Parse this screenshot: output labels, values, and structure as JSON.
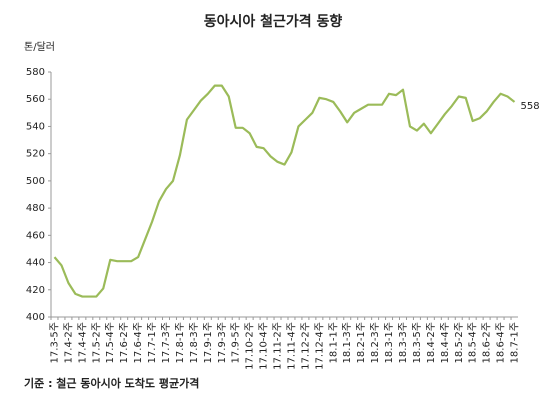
{
  "chart_data": {
    "type": "line",
    "title": "동아시아 철근가격 동향",
    "y_label": "톤/달러",
    "footnote": "기준 : 철근 동아시아 도착도 평균가격",
    "categories": [
      "17.3-5주",
      null,
      "17.4-2주",
      null,
      "17.4-4주",
      null,
      "17.5-2주",
      null,
      "17.5-4주",
      null,
      "17.6-2주",
      null,
      "17.6-4주",
      null,
      "17.7-1주",
      null,
      "17.7-3주",
      null,
      "17.8-1주",
      null,
      "17.8-3주",
      null,
      "17.9-1주",
      null,
      "17.9-3주",
      null,
      "17.9-5주",
      null,
      "17.10-2주",
      null,
      "17.10-4주",
      null,
      "17.11-2주",
      null,
      "17.11-4주",
      null,
      "17.12-2주",
      null,
      "17.12-4주",
      null,
      "18.1-1주",
      null,
      "18.1-3주",
      null,
      "18.2-1주",
      null,
      "18.2-3주",
      null,
      "18.3-1주",
      null,
      "18.3-3주",
      null,
      "18.3-5주",
      null,
      "18.4-2주",
      null,
      "18.4-4주",
      null,
      "18.5-2주",
      null,
      "18.5-4주",
      null,
      "18.6-2주",
      null,
      "18.6-4주",
      null,
      "18.7-1주"
    ],
    "values": [
      444,
      438,
      425,
      417,
      415,
      415,
      415,
      421,
      442,
      441,
      441,
      441,
      444,
      457,
      470,
      485,
      494,
      500,
      519,
      545,
      552,
      559,
      564,
      570,
      570,
      562,
      539,
      539,
      535,
      525,
      524,
      518,
      514,
      512,
      521,
      540,
      545,
      550,
      561,
      560,
      558,
      551,
      543,
      550,
      553,
      556,
      556,
      556,
      564,
      563,
      567,
      540,
      537,
      542,
      535,
      542,
      549,
      555,
      562,
      561,
      544,
      546,
      551,
      558,
      564,
      562,
      558
    ],
    "color": "#9bbb59",
    "ylim": [
      400,
      580
    ],
    "yticks": [
      400,
      420,
      440,
      460,
      480,
      500,
      520,
      540,
      560,
      580
    ],
    "grid": false
  }
}
